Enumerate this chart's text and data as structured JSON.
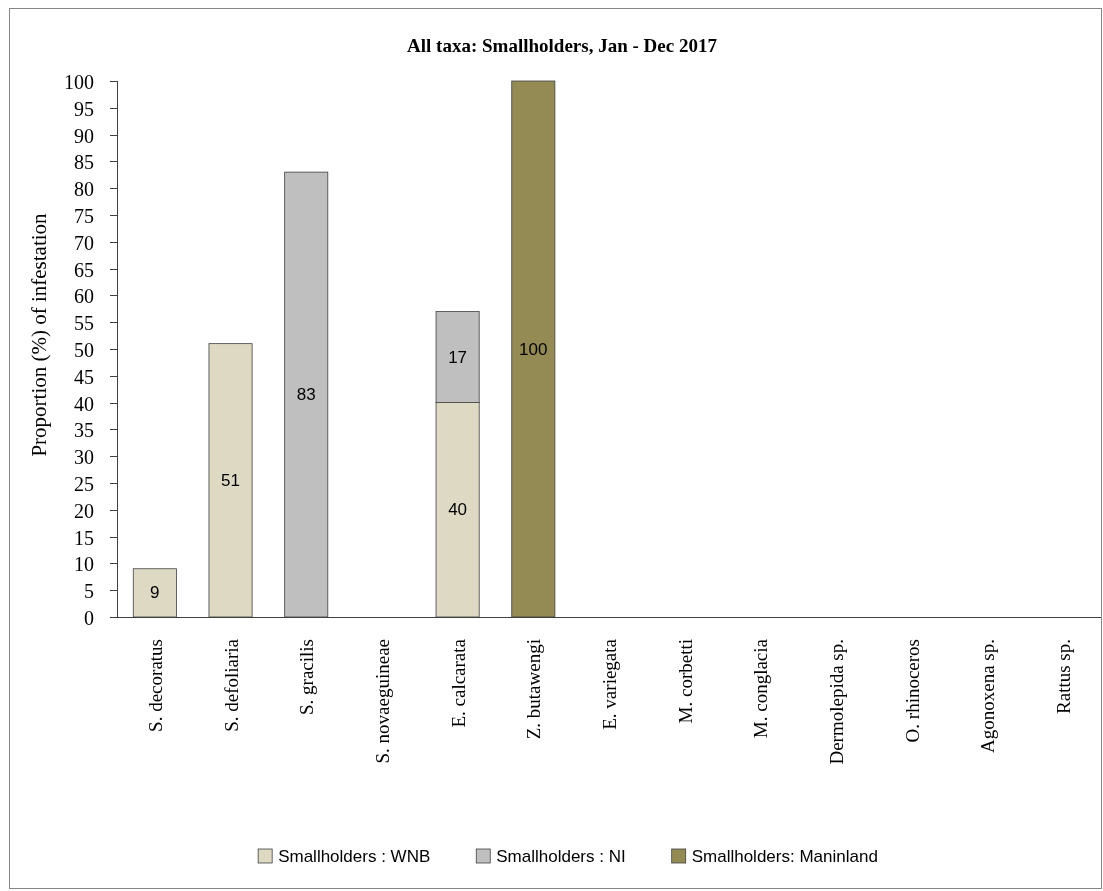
{
  "chart_data": {
    "type": "bar",
    "title": "All taxa: Smallholders, Jan - Dec 2017",
    "ylabel": "Proportion (%) of infestation",
    "categories": [
      "S. decoratus",
      "S. defoliaria",
      "S. gracilis",
      "S. novaeguineae",
      "E. calcarata",
      "Z. butawengi",
      "E. variegata",
      "M. corbetti",
      "M. conglacia",
      "Dermolepida sp.",
      "O. rhinoceros",
      "Agonoxena sp.",
      "Rattus sp."
    ],
    "series": [
      {
        "name": "Smallholders : WNB",
        "color": "#ddd9c3",
        "values": [
          9,
          51,
          null,
          null,
          40,
          null,
          null,
          null,
          null,
          null,
          null,
          null,
          null
        ]
      },
      {
        "name": "Smallholders : NI",
        "color": "#bfbfbf",
        "values": [
          null,
          null,
          83,
          null,
          17,
          null,
          null,
          null,
          null,
          null,
          null,
          null,
          null
        ]
      },
      {
        "name": "Smallholders: Maninland",
        "color": "#948a54",
        "values": [
          null,
          null,
          null,
          null,
          null,
          100,
          null,
          null,
          null,
          null,
          null,
          null,
          null
        ]
      }
    ],
    "stacked": true,
    "ylim": [
      0,
      100
    ],
    "yticks": [
      0,
      5,
      10,
      15,
      20,
      25,
      30,
      35,
      40,
      45,
      50,
      55,
      60,
      65,
      70,
      75,
      80,
      85,
      90,
      95,
      100
    ],
    "legend": "bottom",
    "data_labels": true
  }
}
